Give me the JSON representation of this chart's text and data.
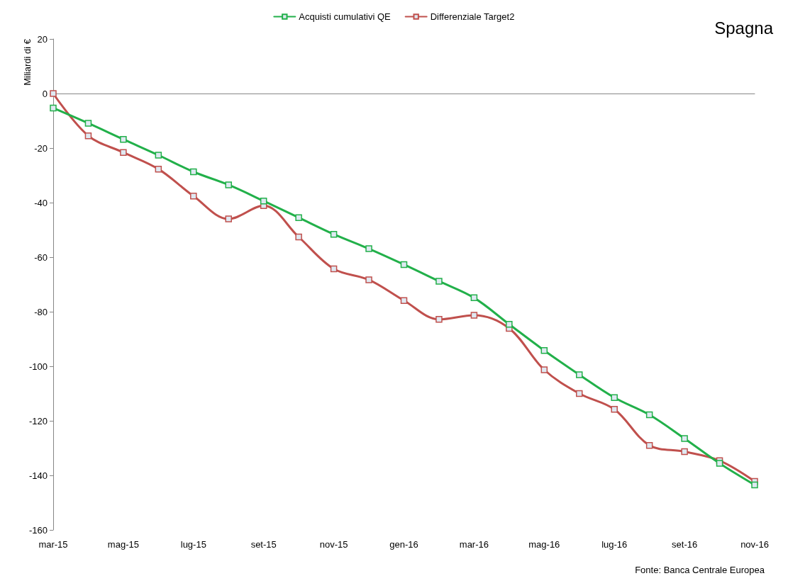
{
  "chart_data": {
    "type": "line",
    "title": "Spagna",
    "ylabel": "Miliardi di €",
    "categories": [
      "mar-15",
      null,
      "mag-15",
      null,
      "lug-15",
      null,
      "set-15",
      null,
      "nov-15",
      null,
      "gen-16",
      null,
      "mar-16",
      null,
      "mag-16",
      null,
      "lug-16",
      null,
      "set-16",
      null,
      "nov-16"
    ],
    "series": [
      {
        "name": "Acquisti cumulativi QE",
        "color": "#22b04a",
        "values": [
          -5.3,
          -10.9,
          -16.8,
          -22.6,
          -28.7,
          -33.5,
          -39.4,
          -45.5,
          -51.6,
          -56.9,
          -62.7,
          -68.8,
          -74.9,
          -84.6,
          -94.2,
          -103.1,
          -111.5,
          -117.8,
          -126.5,
          -135.6,
          -143.5
        ]
      },
      {
        "name": "Differenziale Target2",
        "color": "#c0504d",
        "values": [
          0,
          -15.5,
          -21.6,
          -27.7,
          -37.6,
          -46.0,
          -41.1,
          -52.6,
          -64.3,
          -68.3,
          -75.9,
          -82.8,
          -81.3,
          -86.1,
          -101.3,
          -110.0,
          -115.8,
          -129.0,
          -131.3,
          -134.6,
          -142.2
        ]
      }
    ],
    "ylim": [
      -160,
      20
    ],
    "yticks": [
      -160,
      -140,
      -120,
      -100,
      -80,
      -60,
      -40,
      -20,
      0,
      20
    ],
    "legend": "top",
    "marker": "square",
    "line_style": "solid",
    "annotations": [
      "Fonte: Banca Centrale Europea"
    ]
  }
}
